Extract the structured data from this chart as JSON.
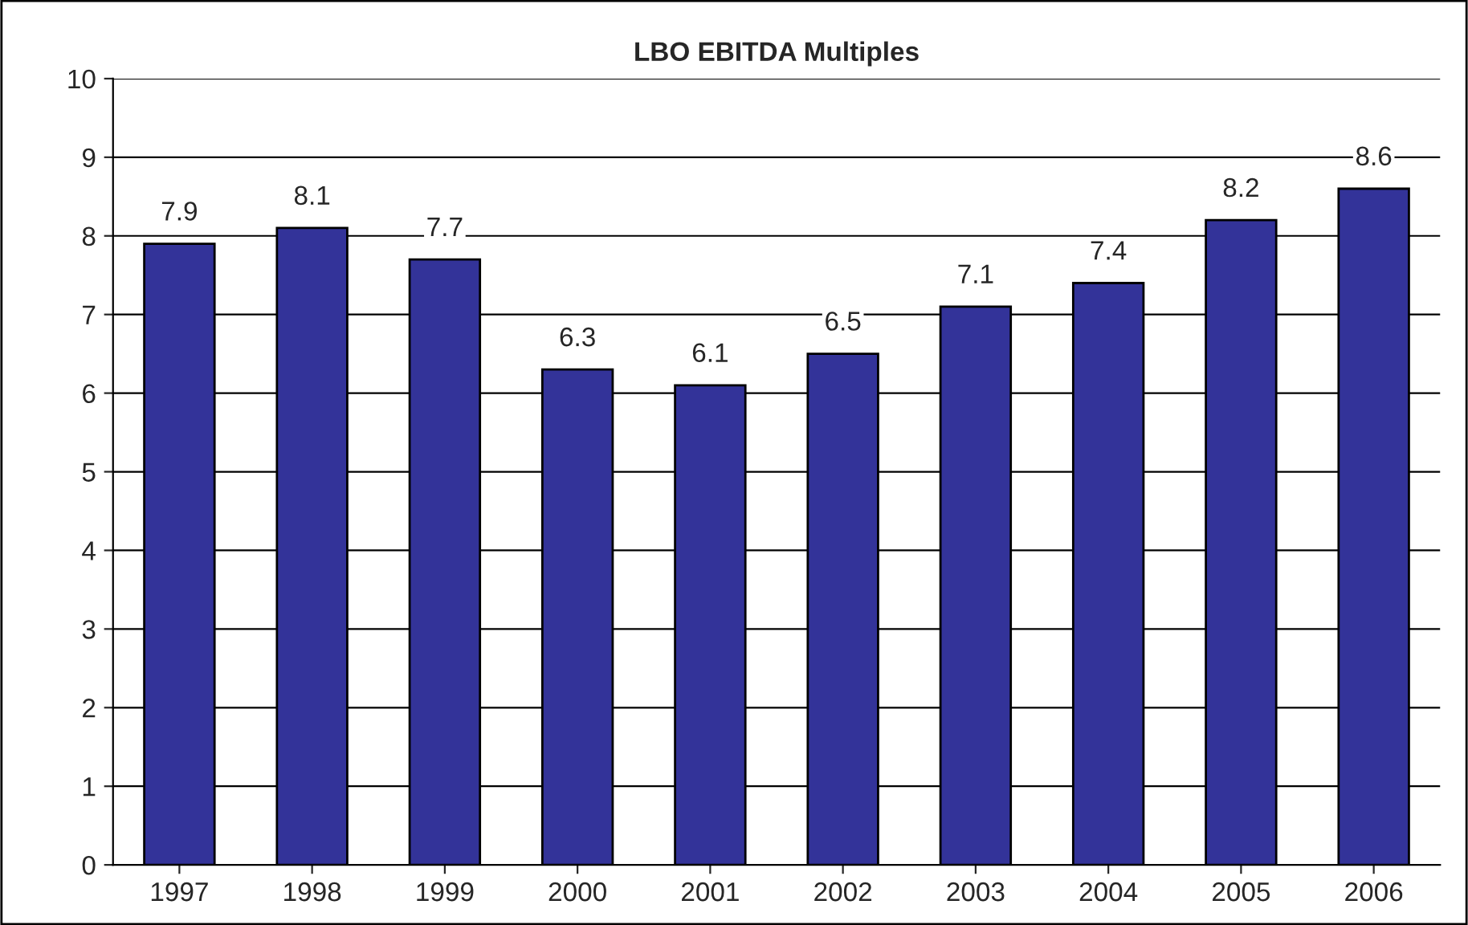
{
  "chart_data": {
    "type": "bar",
    "title": "LBO EBITDA Multiples",
    "categories": [
      "1997",
      "1998",
      "1999",
      "2000",
      "2001",
      "2002",
      "2003",
      "2004",
      "2005",
      "2006"
    ],
    "values": [
      7.9,
      8.1,
      7.7,
      6.3,
      6.1,
      6.5,
      7.1,
      7.4,
      8.2,
      8.6
    ],
    "color": "#333399",
    "ylim": [
      0,
      10
    ],
    "yticks": [
      0,
      1,
      2,
      3,
      4,
      5,
      6,
      7,
      8,
      9,
      10
    ],
    "grid": "y",
    "data_labels": true
  }
}
